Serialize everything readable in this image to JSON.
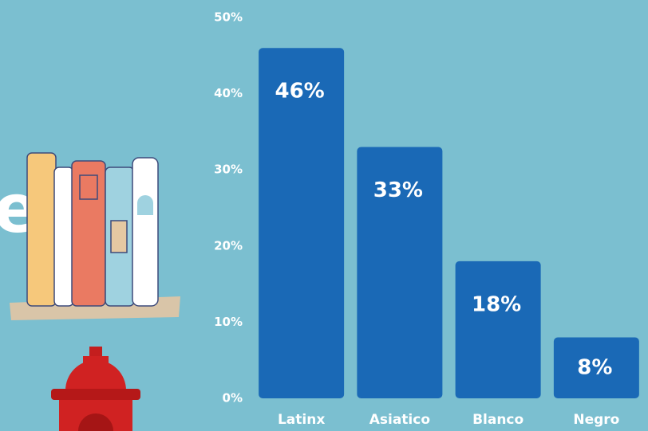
{
  "chart_data": {
    "type": "bar",
    "categories": [
      "Latinx",
      "Asiatico",
      "Blanco",
      "Negro"
    ],
    "values": [
      46,
      33,
      18,
      8
    ],
    "value_labels": [
      "46%",
      "33%",
      "18%",
      "8%"
    ],
    "color": "#1a69b6",
    "ylim": [
      0,
      50
    ],
    "yticks": [
      {
        "value": 0,
        "label": "0%"
      },
      {
        "value": 10,
        "label": "10%"
      },
      {
        "value": 20,
        "label": "20%"
      },
      {
        "value": 30,
        "label": "30%"
      },
      {
        "value": 40,
        "label": "40%"
      },
      {
        "value": 50,
        "label": "50%"
      }
    ],
    "grid": false
  },
  "side_text": "e"
}
